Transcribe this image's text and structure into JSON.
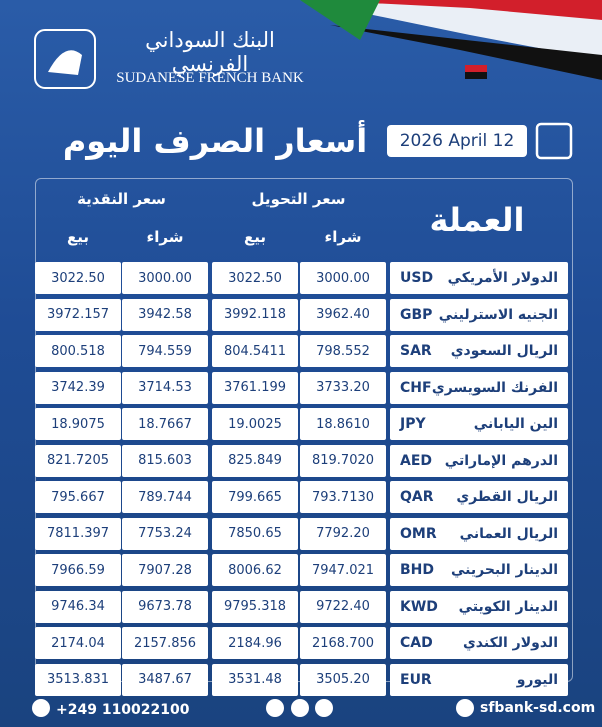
{
  "header": {
    "bank_name_ar": "البنك السوداني الفرنسي",
    "bank_name_en": "SUDANESE FRENCH BANK",
    "title": "أسعار الصرف اليوم",
    "date": "2026 April 12"
  },
  "table": {
    "currency_header": "العملة",
    "transfer_header": "سعر التحويل",
    "cash_header": "سعر النقدية",
    "buy": "شراء",
    "sell": "بيع",
    "rows": [
      {
        "name": "الدولار الأمريكي",
        "code": "USD",
        "transfer_buy": "3000.00",
        "transfer_sell": "3022.50",
        "cash_buy": "3000.00",
        "cash_sell": "3022.50"
      },
      {
        "name": "الجنيه الاسترليني",
        "code": "GBP",
        "transfer_buy": "3962.40",
        "transfer_sell": "3992.118",
        "cash_buy": "3942.58",
        "cash_sell": "3972.157"
      },
      {
        "name": "الريال السعودي",
        "code": "SAR",
        "transfer_buy": "798.552",
        "transfer_sell": "804.5411",
        "cash_buy": "794.559",
        "cash_sell": "800.518"
      },
      {
        "name": "الفرنك السويسري",
        "code": "CHF",
        "transfer_buy": "3733.20",
        "transfer_sell": "3761.199",
        "cash_buy": "3714.53",
        "cash_sell": "3742.39"
      },
      {
        "name": "الين الياباني",
        "code": "JPY",
        "transfer_buy": "18.8610",
        "transfer_sell": "19.0025",
        "cash_buy": "18.7667",
        "cash_sell": "18.9075"
      },
      {
        "name": "الدرهم الإماراتي",
        "code": "AED",
        "transfer_buy": "819.7020",
        "transfer_sell": "825.849",
        "cash_buy": "815.603",
        "cash_sell": "821.7205"
      },
      {
        "name": "الريال القطري",
        "code": "QAR",
        "transfer_buy": "793.7130",
        "transfer_sell": "799.665",
        "cash_buy": "789.744",
        "cash_sell": "795.667"
      },
      {
        "name": "الريال العماني",
        "code": "OMR",
        "transfer_buy": "7792.20",
        "transfer_sell": "7850.65",
        "cash_buy": "7753.24",
        "cash_sell": "7811.397"
      },
      {
        "name": "الدينار البحريني",
        "code": "BHD",
        "transfer_buy": "7947.021",
        "transfer_sell": "8006.62",
        "cash_buy": "7907.28",
        "cash_sell": "7966.59"
      },
      {
        "name": "الدينار الكويتي",
        "code": "KWD",
        "transfer_buy": "9722.40",
        "transfer_sell": "9795.318",
        "cash_buy": "9673.78",
        "cash_sell": "9746.34"
      },
      {
        "name": "الدولار الكندي",
        "code": "CAD",
        "transfer_buy": "2168.700",
        "transfer_sell": "2184.96",
        "cash_buy": "2157.856",
        "cash_sell": "2174.04"
      },
      {
        "name": "اليورو",
        "code": "EUR",
        "transfer_buy": "3505.20",
        "transfer_sell": "3531.48",
        "cash_buy": "3487.67",
        "cash_sell": "3513.831"
      }
    ]
  },
  "footer": {
    "phone": "+249 110022100",
    "website": "sfbank-sd.com"
  }
}
